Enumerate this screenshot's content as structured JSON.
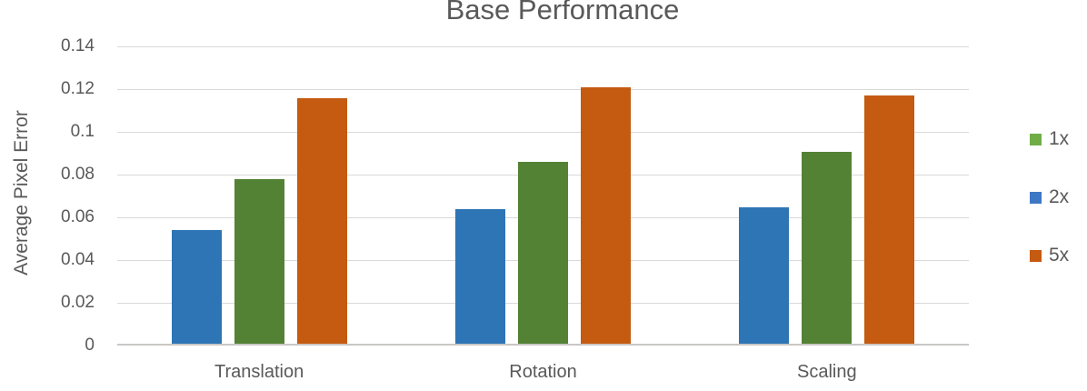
{
  "chart_data": {
    "type": "bar",
    "title": "Base Performance",
    "ylabel": "Average Pixel Error",
    "xlabel": "",
    "categories": [
      "Translation",
      "Rotation",
      "Scaling"
    ],
    "series": [
      {
        "name": "2x",
        "color": "#2E75B6",
        "values": [
          0.053,
          0.063,
          0.064
        ]
      },
      {
        "name": "1x",
        "color": "#548235",
        "values": [
          0.077,
          0.085,
          0.09
        ]
      },
      {
        "name": "5x",
        "color": "#C55A11",
        "values": [
          0.115,
          0.12,
          0.116
        ]
      }
    ],
    "legend": {
      "position": "right",
      "items": [
        {
          "label": "1x",
          "swatch_color": "#70AD47"
        },
        {
          "label": "2x",
          "swatch_color": "#3E78C4"
        },
        {
          "label": "5x",
          "swatch_color": "#C55A11"
        }
      ]
    },
    "ylim": [
      0,
      0.14
    ],
    "yticks": [
      "0.14",
      "0.12",
      "0.1",
      "0.08",
      "0.06",
      "0.04",
      "0.02",
      "0"
    ],
    "ytick_values": [
      0.14,
      0.12,
      0.1,
      0.08,
      0.06,
      0.04,
      0.02,
      0
    ],
    "grid": true,
    "colors": {
      "text": "#595959",
      "gridline": "#D9D9D9",
      "axis_line": "#C9C7C5",
      "background": "#FFFFFF"
    }
  }
}
